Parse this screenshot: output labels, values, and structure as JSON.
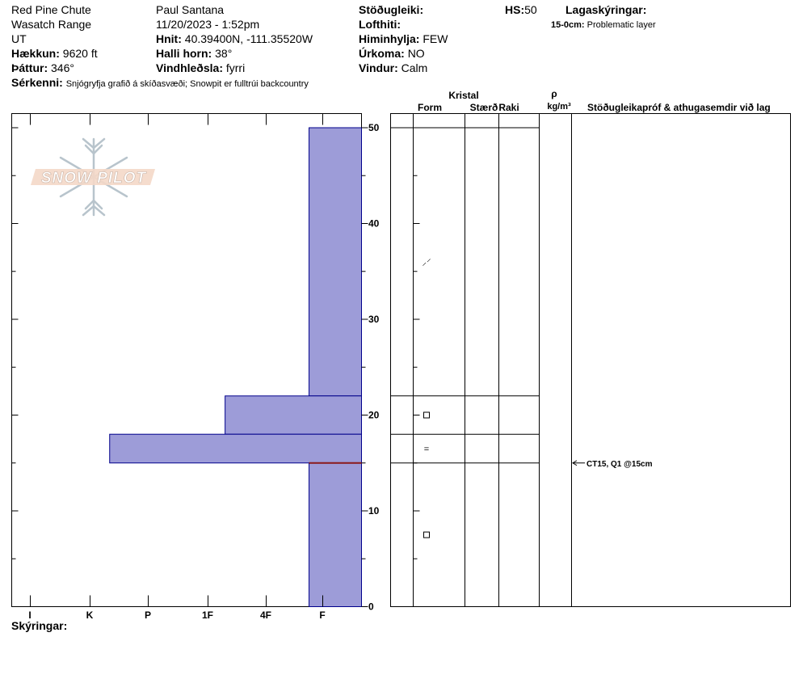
{
  "header": {
    "location": "Red Pine Chute",
    "range": "Wasatch Range",
    "state": "UT",
    "elevation_label": "Hækkun:",
    "elevation_value": "9620 ft",
    "aspect_label": "Þáttur:",
    "aspect_value": "346°",
    "observer": "Paul Santana",
    "datetime": "11/20/2023 - 1:52pm",
    "coords_label": "Hnit:",
    "coords_value": "40.39400N, -111.35520W",
    "slope_label": "Halli horn:",
    "slope_value": "38°",
    "wind_loading_label": "Vindhleðsla:",
    "wind_loading_value": "fyrri",
    "stability_label": "Stöðugleiki:",
    "air_temp_label": "Lofthiti:",
    "sky_label": "Himinhylja:",
    "sky_value": "FEW",
    "precip_label": "Úrkoma:",
    "precip_value": "NO",
    "wind_label": "Vindur:",
    "wind_value": "Calm",
    "hs_label": "HS:",
    "hs_value": "50",
    "layer_notes_label": "Lagaskýringar:",
    "layer_note_depth": "15-0cm:",
    "layer_note_text": "Problematic layer",
    "features_label": "Sérkenni:",
    "features_value": "Snjógryfja grafið á skíðasvæði;  Snowpit er fulltrúi backcountry"
  },
  "columns": {
    "crystal": "Kristal",
    "form": "Form",
    "size": "Stærð",
    "moisture": "Raki",
    "rho": "ρ",
    "density_unit": "kg/m³",
    "tests": "Stöðugleikapróf & athugasemdir við lag"
  },
  "footer": {
    "notes_label": "Skýringar:"
  },
  "logo": {
    "text": "SNOW PILOT"
  },
  "colors": {
    "layer_fill": "#9d9cd8",
    "layer_stroke": "#00008b",
    "problem_line": "#8b1a1a"
  },
  "chart_data": {
    "type": "bar",
    "orientation": "horizontal",
    "hardness_ticks": [
      "I",
      "K",
      "P",
      "1F",
      "4F",
      "F"
    ],
    "depth_ticks": [
      0,
      10,
      20,
      30,
      40,
      50
    ],
    "depth_range": [
      0,
      50
    ],
    "layers": [
      {
        "top": 50,
        "bottom": 22,
        "hardness": "F"
      },
      {
        "top": 22,
        "bottom": 18,
        "hardness": "1F+"
      },
      {
        "top": 18,
        "bottom": 15,
        "hardness": "K+"
      },
      {
        "top": 15,
        "bottom": 0,
        "hardness": "F"
      }
    ],
    "layer_bar_extent": [
      {
        "top": 50,
        "bottom": 22,
        "from_right": 0.15
      },
      {
        "top": 22,
        "bottom": 18,
        "from_right": 0.39
      },
      {
        "top": 18,
        "bottom": 15,
        "from_right": 0.72
      },
      {
        "top": 15,
        "bottom": 0,
        "from_right": 0.15
      }
    ],
    "problem_layer_depth": 15,
    "grain_forms": [
      {
        "depth": 36,
        "symbol": "⸝⸍"
      },
      {
        "depth": 20,
        "symbol": "□"
      },
      {
        "depth": 16.5,
        "symbol": "="
      },
      {
        "depth": 7.5,
        "symbol": "□"
      }
    ],
    "tests": [
      {
        "depth": 15,
        "text": "CT15, Q1 @15cm"
      }
    ]
  }
}
